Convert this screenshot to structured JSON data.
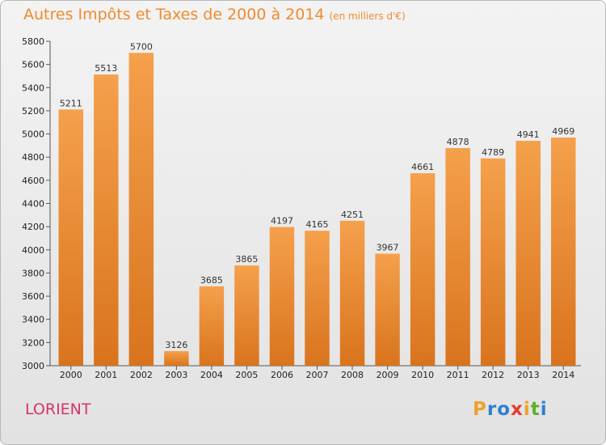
{
  "chart_data": {
    "type": "bar",
    "title": "Autres Impôts et Taxes de 2000 à 2014",
    "unit": "(en milliers d'€)",
    "categories": [
      "2000",
      "2001",
      "2002",
      "2003",
      "2004",
      "2005",
      "2006",
      "2007",
      "2008",
      "2009",
      "2010",
      "2011",
      "2012",
      "2013",
      "2014"
    ],
    "values": [
      5211,
      5513,
      5700,
      3126,
      3685,
      3865,
      4197,
      4165,
      4251,
      3967,
      4661,
      4878,
      4789,
      4941,
      4969
    ],
    "ylim": [
      3000,
      5800
    ],
    "yticks": [
      3000,
      3200,
      3400,
      3600,
      3800,
      4000,
      4200,
      4400,
      4600,
      4800,
      5000,
      5200,
      5400,
      5600,
      5800
    ],
    "xlabel": "",
    "ylabel": "",
    "grid": false,
    "bar_color": "#f0882e"
  },
  "location": "LORIENT",
  "brand": {
    "letters": [
      "P",
      "r",
      "o",
      "x",
      "i",
      "t",
      "i"
    ],
    "colors": [
      "#f0a02a",
      "#2e7fd1",
      "#2e7fd1",
      "#e43c2f",
      "#f0a02a",
      "#5cb12a",
      "#2e7fd1"
    ]
  }
}
